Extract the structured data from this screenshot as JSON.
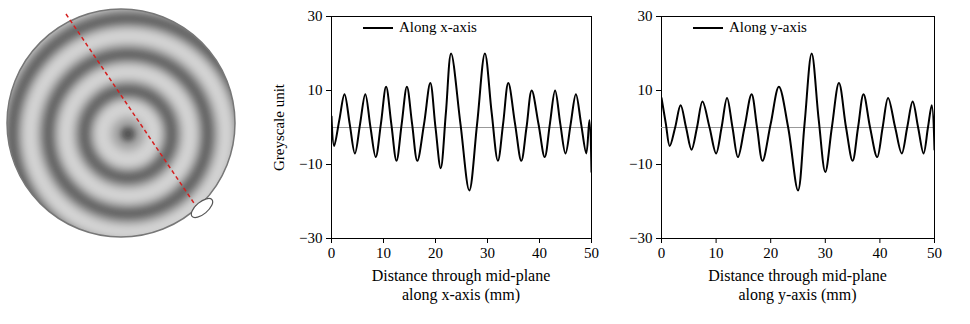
{
  "chart_data": [
    {
      "type": "line",
      "ylabel": "Greyscale unit",
      "xlabel": "Distance through mid-plane along x-axis (mm)",
      "x": [
        0,
        0.5,
        1.5,
        2.5,
        3.5,
        4.5,
        5.5,
        6.5,
        7.5,
        8.5,
        9.5,
        10.5,
        11.5,
        12.5,
        13.5,
        14.5,
        15.5,
        16.5,
        17.8,
        19,
        20,
        21,
        22,
        23,
        24.8,
        26.5,
        28,
        29.5,
        30.8,
        32,
        33,
        34,
        35.3,
        36.5,
        37.5,
        38.5,
        39.8,
        41,
        42,
        43,
        44,
        45,
        46,
        47,
        48,
        49,
        49.6,
        50
      ],
      "series": [
        {
          "name": "Along x-axis",
          "color": "#000000",
          "values": [
            3,
            -5,
            2,
            9,
            1,
            -7,
            1,
            9,
            0,
            -8,
            1,
            11,
            1,
            -9,
            1,
            11,
            1,
            -9,
            1,
            12,
            0,
            -11,
            4,
            20,
            1,
            -17,
            1,
            20,
            4,
            -9,
            1,
            12,
            1,
            -9,
            0,
            10,
            1,
            -8,
            1,
            10,
            1,
            -7,
            1,
            9,
            1,
            -7,
            2,
            -12
          ]
        }
      ],
      "xlim": [
        0,
        50
      ],
      "xticks": [
        0,
        10,
        20,
        30,
        40,
        50
      ],
      "ylim": [
        -30,
        30
      ],
      "yticks": [
        -30,
        -10,
        10,
        30
      ],
      "hline": 0,
      "grid": false,
      "legend": "top"
    },
    {
      "type": "line",
      "xlabel": "Distance through mid-plane along y-axis (mm)",
      "x": [
        0,
        0.8,
        1.5,
        2.5,
        3.5,
        4.5,
        5.5,
        6.5,
        7.5,
        8.8,
        10,
        11,
        12,
        13,
        14,
        15.2,
        16.5,
        17.5,
        18.5,
        20,
        21.5,
        23.2,
        25,
        26.2,
        27.5,
        28.8,
        30,
        31.2,
        32.5,
        33.8,
        35,
        36,
        37,
        38.2,
        39.5,
        40.5,
        41.5,
        42.8,
        44,
        45,
        46,
        47,
        48,
        48.8,
        49.5,
        50
      ],
      "series": [
        {
          "name": "Along y-axis",
          "color": "#000000",
          "values": [
            8,
            1,
            -5,
            0,
            6,
            0,
            -6,
            0,
            7,
            0,
            -7,
            0,
            8,
            0,
            -8,
            0,
            9,
            0,
            -9,
            1,
            11,
            0,
            -17,
            1,
            20,
            2,
            -12,
            0,
            12,
            0,
            -9,
            0,
            9,
            0,
            -8,
            0,
            8,
            0,
            -7,
            0,
            7,
            0,
            -7,
            0,
            6,
            -6
          ]
        }
      ],
      "xlim": [
        0,
        50
      ],
      "xticks": [
        0,
        10,
        20,
        30,
        40,
        50
      ],
      "ylim": [
        -30,
        30
      ],
      "yticks": [
        -30,
        -10,
        10,
        30
      ],
      "hline": 0,
      "grid": false,
      "legend": "top"
    }
  ]
}
